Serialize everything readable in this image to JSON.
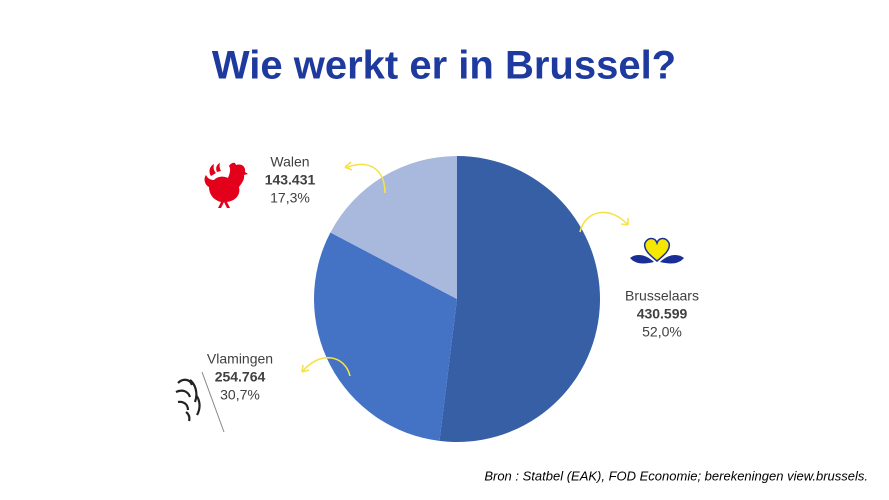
{
  "chart_data": {
    "type": "pie",
    "title": "Wie werkt er in Brussel?",
    "categories": [
      "Brusselaars",
      "Vlamingen",
      "Walen"
    ],
    "values": [
      430599,
      254764,
      143431
    ],
    "value_labels": [
      "430.599",
      "254.764",
      "143.431"
    ],
    "percent_labels": [
      "52,0%",
      "30,7%",
      "17,3%"
    ],
    "colors": [
      "#365fa5",
      "#4472c4",
      "#a9b8dd"
    ],
    "source": "Bron : Statbel (EAK), FOD Economie; berekeningen view.brussels."
  }
}
